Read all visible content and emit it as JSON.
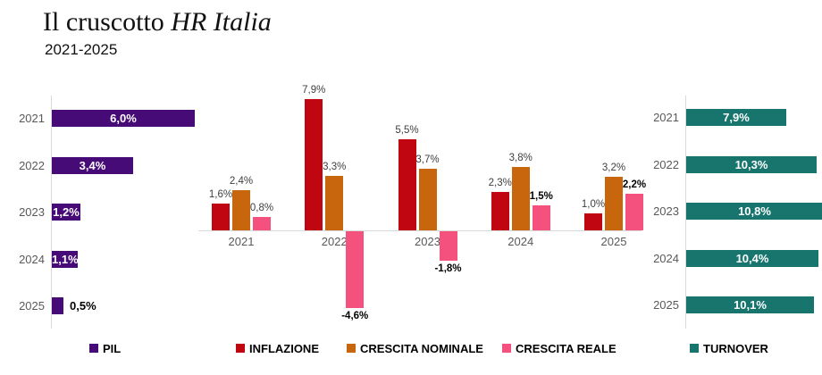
{
  "header": {
    "title_regular": "Il cruscotto ",
    "title_italic": "HR Italia",
    "subtitle": "2021-2025"
  },
  "colors": {
    "pil": "#470b77",
    "inflazione": "#c00610",
    "crescita_nominale": "#c8660e",
    "crescita_reale": "#f4517e",
    "turnover": "#17756e",
    "axis": "#d9d9d9",
    "label_grey": "#404040",
    "year_grey": "#595959"
  },
  "legend": {
    "pil": "PIL",
    "inflazione": "INFLAZIONE",
    "crescita_nominale": "CRESCITA NOMINALE",
    "crescita_reale": "CRESCITA REALE",
    "turnover": "TURNOVER"
  },
  "chart_data": [
    {
      "type": "bar",
      "orientation": "horizontal",
      "title": "PIL",
      "categories": [
        "2021",
        "2022",
        "2023",
        "2024",
        "2025"
      ],
      "values": [
        6.0,
        3.4,
        1.2,
        1.1,
        0.5
      ],
      "labels": [
        "6,0%",
        "3,4%",
        "1,2%",
        "1,1%",
        "0,5%"
      ],
      "color_key": "pil",
      "xlim": [
        0,
        6.5
      ],
      "grid": false,
      "legend_position": "bottom"
    },
    {
      "type": "bar",
      "orientation": "vertical",
      "title": "Inflazione / Crescita nominale / Crescita reale",
      "categories": [
        "2021",
        "2022",
        "2023",
        "2024",
        "2025"
      ],
      "series": [
        {
          "name": "INFLAZIONE",
          "color_key": "inflazione",
          "values": [
            1.6,
            7.9,
            5.5,
            2.3,
            1.0
          ],
          "labels": [
            "1,6%",
            "7,9%",
            "5,5%",
            "2,3%",
            "1,0%"
          ],
          "label_bold": [
            false,
            false,
            false,
            false,
            false
          ]
        },
        {
          "name": "CRESCITA NOMINALE",
          "color_key": "crescita_nominale",
          "values": [
            2.4,
            3.3,
            3.7,
            3.8,
            3.2
          ],
          "labels": [
            "2,4%",
            "3,3%",
            "3,7%",
            "3,8%",
            "3,2%"
          ],
          "label_bold": [
            false,
            false,
            false,
            false,
            false
          ]
        },
        {
          "name": "CRESCITA REALE",
          "color_key": "crescita_reale",
          "values": [
            0.8,
            -4.6,
            -1.8,
            1.5,
            2.2
          ],
          "labels": [
            "0,8%",
            "-4,6%",
            "-1,8%",
            "1,5%",
            "2,2%"
          ],
          "label_bold": [
            false,
            true,
            true,
            true,
            true
          ]
        }
      ],
      "ylim": [
        -5,
        8.5
      ],
      "grid": false,
      "legend_position": "bottom"
    },
    {
      "type": "bar",
      "orientation": "horizontal",
      "title": "TURNOVER",
      "categories": [
        "2021",
        "2022",
        "2023",
        "2024",
        "2025"
      ],
      "values": [
        7.9,
        10.3,
        10.8,
        10.4,
        10.1
      ],
      "labels": [
        "7,9%",
        "10,3%",
        "10,8%",
        "10,4%",
        "10,1%"
      ],
      "color_key": "turnover",
      "xlim": [
        0,
        11
      ],
      "grid": false,
      "legend_position": "bottom"
    }
  ]
}
